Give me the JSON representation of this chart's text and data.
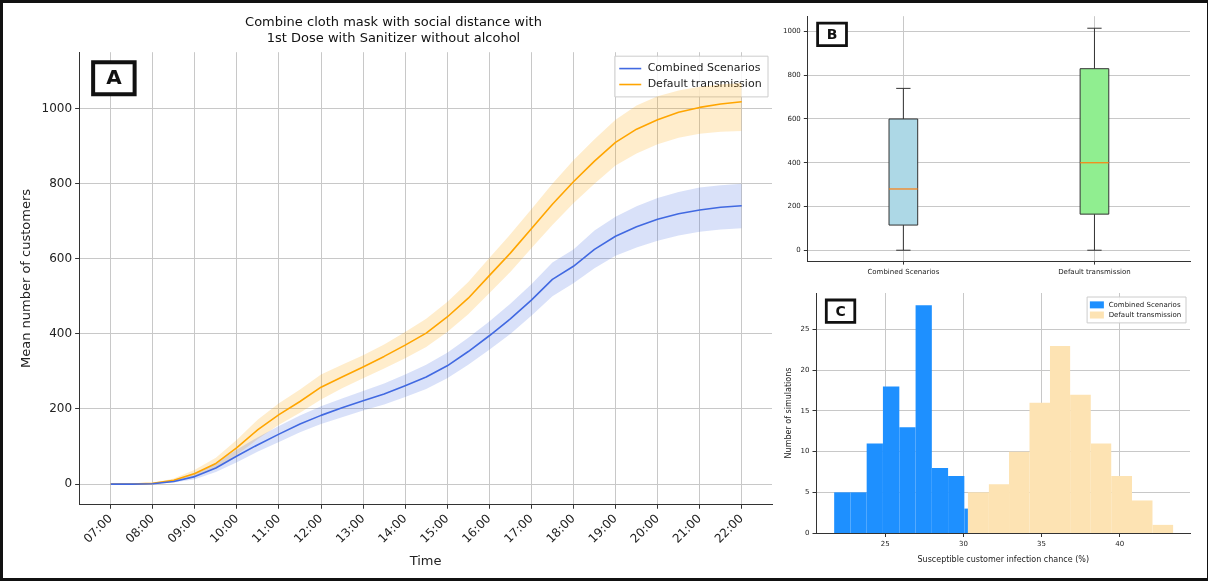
{
  "chart_data": [
    {
      "type": "line",
      "title": "Combine cloth mask with social distance with\n1st Dose with Sanitizer without alcohol",
      "xlabel": "Time",
      "ylabel": "Mean number of customers",
      "annotations": [
        "A"
      ],
      "x": [
        7,
        7.5,
        8,
        8.5,
        9,
        9.5,
        10,
        10.5,
        11,
        11.5,
        12,
        12.5,
        13,
        13.5,
        14,
        14.5,
        15,
        15.5,
        16,
        16.5,
        17,
        17.5,
        18,
        18.5,
        19,
        19.5,
        20,
        20.5,
        21,
        21.5,
        22
      ],
      "series": [
        {
          "name": "Combined Scenarios",
          "color": "#4169e1",
          "values": [
            0,
            0,
            1,
            7,
            20,
            43,
            75,
            105,
            133,
            160,
            183,
            203,
            222,
            240,
            262,
            285,
            315,
            353,
            395,
            440,
            490,
            545,
            580,
            625,
            660,
            685,
            705,
            720,
            730,
            737,
            741
          ],
          "lower": [
            0,
            0,
            0,
            4,
            13,
            32,
            58,
            87,
            112,
            138,
            160,
            178,
            196,
            212,
            232,
            253,
            282,
            318,
            358,
            400,
            448,
            500,
            535,
            575,
            608,
            630,
            648,
            662,
            672,
            678,
            681
          ],
          "upper": [
            0,
            0,
            2,
            11,
            28,
            56,
            92,
            125,
            155,
            183,
            207,
            228,
            248,
            268,
            292,
            318,
            350,
            390,
            433,
            480,
            532,
            590,
            625,
            675,
            712,
            740,
            762,
            778,
            790,
            796,
            800
          ]
        },
        {
          "name": "Default transmission",
          "color": "#ffa500",
          "values": [
            0,
            0,
            2,
            10,
            28,
            55,
            97,
            145,
            185,
            220,
            258,
            285,
            312,
            340,
            370,
            402,
            445,
            495,
            555,
            615,
            680,
            745,
            805,
            860,
            910,
            945,
            970,
            990,
            1003,
            1012,
            1018
          ],
          "lower": [
            0,
            0,
            1,
            6,
            20,
            42,
            78,
            120,
            158,
            190,
            225,
            255,
            282,
            308,
            335,
            365,
            405,
            452,
            508,
            565,
            628,
            690,
            748,
            800,
            848,
            880,
            905,
            922,
            933,
            938,
            940
          ],
          "upper": [
            0,
            0,
            3,
            15,
            38,
            70,
            118,
            172,
            215,
            252,
            292,
            318,
            343,
            372,
            405,
            440,
            485,
            538,
            602,
            665,
            732,
            800,
            862,
            918,
            970,
            1008,
            1033,
            1048,
            1058,
            1064,
            1068
          ]
        }
      ],
      "xlim": [
        6.25,
        22.72
      ],
      "xticks": [
        {
          "value": 7,
          "label": "07:00"
        },
        {
          "value": 8,
          "label": "08:00"
        },
        {
          "value": 9,
          "label": "09:00"
        },
        {
          "value": 10,
          "label": "10:00"
        },
        {
          "value": 11,
          "label": "11:00"
        },
        {
          "value": 12,
          "label": "12:00"
        },
        {
          "value": 13,
          "label": "13:00"
        },
        {
          "value": 14,
          "label": "14:00"
        },
        {
          "value": 15,
          "label": "15:00"
        },
        {
          "value": 16,
          "label": "16:00"
        },
        {
          "value": 17,
          "label": "17:00"
        },
        {
          "value": 18,
          "label": "18:00"
        },
        {
          "value": 19,
          "label": "19:00"
        },
        {
          "value": 20,
          "label": "20:00"
        },
        {
          "value": 21,
          "label": "21:00"
        },
        {
          "value": 22,
          "label": "22:00"
        }
      ],
      "ylim": [
        -55,
        1150
      ],
      "yticks": [
        0,
        200,
        400,
        600,
        800,
        1000
      ],
      "grid": true,
      "legend": "top right"
    },
    {
      "type": "box",
      "annotations": [
        "B"
      ],
      "categories": [
        "Combined Scenarios",
        "Default transmission"
      ],
      "colors": [
        "#add8e6",
        "#90ee90"
      ],
      "boxes": [
        {
          "low": 0,
          "q1": 115,
          "median": 280,
          "q3": 600,
          "high": 740
        },
        {
          "low": 0,
          "q1": 165,
          "median": 400,
          "q3": 830,
          "high": 1015
        }
      ],
      "ylim": [
        -52,
        1070
      ],
      "yticks": [
        0,
        200,
        400,
        600,
        800,
        1000
      ],
      "grid": true
    },
    {
      "type": "histogram",
      "annotations": [
        "C"
      ],
      "xlabel": "Susceptible customer infection chance (%)",
      "ylabel": "Number of simulations",
      "bins": [
        21.73,
        22.77,
        23.81,
        24.85,
        25.9,
        26.94,
        27.98,
        29.02,
        30.06,
        30.29,
        31.63,
        32.92,
        34.23,
        35.54,
        36.83,
        38.15,
        39.46,
        40.79,
        42.1,
        43.42
      ],
      "series": [
        {
          "name": "Combined Scenarios",
          "color": "#1e90ff",
          "values": [
            5,
            5,
            11,
            18,
            13,
            28,
            8,
            7,
            3,
            null,
            null,
            null,
            null,
            null,
            null,
            null,
            null,
            null,
            null
          ]
        },
        {
          "name": "Default transmission",
          "color": "#fde3b3",
          "values": [
            null,
            null,
            null,
            null,
            null,
            null,
            null,
            null,
            null,
            5,
            6,
            10,
            16,
            23,
            17,
            11,
            7,
            4,
            1
          ]
        }
      ],
      "xlim": [
        20.6,
        44.5
      ],
      "xticks": [
        25,
        30,
        35,
        40
      ],
      "ylim": [
        0,
        29.5
      ],
      "yticks": [
        0,
        5,
        10,
        15,
        20,
        25
      ],
      "grid": true,
      "legend": "top right"
    }
  ]
}
